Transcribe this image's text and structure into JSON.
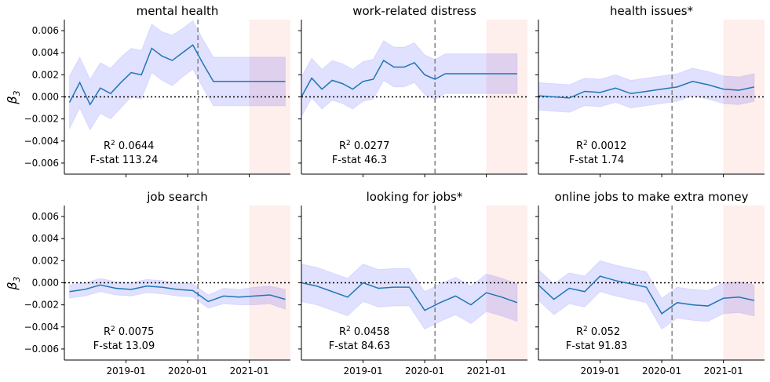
{
  "figure": {
    "ylabel_main": "β",
    "ylabel_sub": "3"
  },
  "colors": {
    "line": "#1f77b4",
    "band": "#0000ff",
    "shade": "#fde0dc",
    "vline": "#808080",
    "hline": "#000000"
  },
  "chart_data": [
    {
      "type": "line",
      "title": "mental health",
      "xlim": [
        "2018-01",
        "2021-09"
      ],
      "ylim": [
        -0.007,
        0.007
      ],
      "x_ticks": [
        "2019-01",
        "2020-01",
        "2021-01"
      ],
      "y_ticks": [
        "0.006",
        "0.004",
        "0.002",
        "0.000",
        "−0.002",
        "−0.004",
        "−0.006"
      ],
      "vline_x": "2020-03",
      "hline_y": 0.0,
      "shade_x": [
        "2021-01",
        "2021-09"
      ],
      "stats": {
        "r2_label": "R",
        "r2_sup": "2",
        "r2": "0.0644",
        "f_label": "F-stat",
        "f": "113.24"
      },
      "series": [
        {
          "x": [
            "2018-02",
            "2018-04",
            "2018-06",
            "2018-08",
            "2018-10",
            "2018-12",
            "2019-02",
            "2019-04",
            "2019-06",
            "2019-08",
            "2019-10",
            "2019-12",
            "2020-02",
            "2020-04",
            "2020-06",
            "2020-08",
            "2020-10",
            "2020-12",
            "2021-02",
            "2021-04",
            "2021-06",
            "2021-08"
          ],
          "y": [
            -0.0005,
            0.0013,
            -0.0007,
            0.0008,
            0.0003,
            0.0013,
            0.0022,
            0.002,
            0.0044,
            0.0037,
            0.0033,
            0.004,
            0.0047,
            0.003,
            0.0014,
            0.0014,
            0.0014,
            0.0014,
            0.0014,
            0.0014,
            0.0014,
            0.0014
          ],
          "y_lower": [
            -0.0029,
            -0.001,
            -0.003,
            -0.0015,
            -0.002,
            -0.001,
            0.0,
            -0.0002,
            0.0022,
            0.0015,
            0.001,
            0.0018,
            0.0025,
            0.0008,
            -0.0008,
            -0.0008,
            -0.0008,
            -0.0008,
            -0.0008,
            -0.0008,
            -0.0008,
            -0.0008
          ],
          "y_upper": [
            0.0019,
            0.0036,
            0.0016,
            0.0031,
            0.0026,
            0.0036,
            0.0044,
            0.0042,
            0.0066,
            0.0059,
            0.0056,
            0.0062,
            0.0069,
            0.0052,
            0.0036,
            0.0036,
            0.0036,
            0.0036,
            0.0036,
            0.0036,
            0.0036,
            0.0036
          ]
        }
      ]
    },
    {
      "type": "line",
      "title": "work-related distress",
      "xlim": [
        "2018-01",
        "2021-09"
      ],
      "ylim": [
        -0.007,
        0.007
      ],
      "x_ticks": [
        "2019-01",
        "2020-01",
        "2021-01"
      ],
      "y_ticks": [],
      "vline_x": "2020-03",
      "hline_y": 0.0,
      "shade_x": [
        "2021-01",
        "2021-09"
      ],
      "stats": {
        "r2_label": "R",
        "r2_sup": "2",
        "r2": "0.0277",
        "f_label": "F-stat",
        "f": "46.3"
      },
      "series": [
        {
          "x": [
            "2018-01",
            "2018-03",
            "2018-05",
            "2018-07",
            "2018-09",
            "2018-11",
            "2019-01",
            "2019-03",
            "2019-05",
            "2019-07",
            "2019-09",
            "2019-11",
            "2020-01",
            "2020-03",
            "2020-05",
            "2020-07",
            "2020-09",
            "2020-11",
            "2021-01",
            "2021-03",
            "2021-05",
            "2021-07"
          ],
          "y": [
            0.0,
            0.0017,
            0.0007,
            0.0015,
            0.0012,
            0.0007,
            0.0014,
            0.0016,
            0.0033,
            0.0027,
            0.0027,
            0.0031,
            0.002,
            0.0016,
            0.0021,
            0.0021,
            0.0021,
            0.0021,
            0.0021,
            0.0021,
            0.0021,
            0.0021
          ],
          "y_lower": [
            -0.0018,
            -0.0001,
            -0.0011,
            -0.0003,
            -0.0006,
            -0.0011,
            -0.0004,
            -0.0002,
            0.0015,
            0.0009,
            0.0009,
            0.0013,
            0.0002,
            -0.0002,
            0.0003,
            0.0003,
            0.0003,
            0.0003,
            0.0003,
            0.0003,
            0.0003,
            0.0003
          ],
          "y_upper": [
            0.0018,
            0.0035,
            0.0025,
            0.0033,
            0.003,
            0.0025,
            0.0032,
            0.0034,
            0.0051,
            0.0045,
            0.0045,
            0.0049,
            0.0038,
            0.0034,
            0.0039,
            0.0039,
            0.0039,
            0.0039,
            0.0039,
            0.0039,
            0.0039,
            0.0039
          ]
        }
      ]
    },
    {
      "type": "line",
      "title": "health issues*",
      "xlim": [
        "2018-01",
        "2021-09"
      ],
      "ylim": [
        -0.007,
        0.007
      ],
      "x_ticks": [
        "2019-01",
        "2020-01",
        "2021-01"
      ],
      "y_ticks": [],
      "vline_x": "2020-03",
      "hline_y": 0.0,
      "shade_x": [
        "2021-01",
        "2021-09"
      ],
      "stats": {
        "r2_label": "R",
        "r2_sup": "2",
        "r2": "0.0012",
        "f_label": "F-stat",
        "f": "1.74"
      },
      "series": [
        {
          "x": [
            "2018-01",
            "2018-04",
            "2018-07",
            "2018-10",
            "2019-01",
            "2019-04",
            "2019-07",
            "2019-10",
            "2020-01",
            "2020-04",
            "2020-07",
            "2020-10",
            "2021-01",
            "2021-04",
            "2021-07"
          ],
          "y": [
            0.0001,
            0.0,
            -0.0001,
            0.0005,
            0.0004,
            0.0008,
            0.0003,
            0.0005,
            0.0007,
            0.0009,
            0.0014,
            0.0011,
            0.0007,
            0.0006,
            0.0009
          ],
          "y_lower": [
            -0.0012,
            -0.0013,
            -0.0014,
            -0.0008,
            -0.0009,
            -0.0005,
            -0.001,
            -0.0008,
            -0.0006,
            -0.0004,
            0.0001,
            -0.0002,
            -0.0006,
            -0.0007,
            -0.0004
          ],
          "y_upper": [
            0.0013,
            0.0012,
            0.0011,
            0.0017,
            0.0016,
            0.002,
            0.0015,
            0.0017,
            0.0019,
            0.0021,
            0.0026,
            0.0023,
            0.0019,
            0.0018,
            0.0021
          ]
        }
      ]
    },
    {
      "type": "line",
      "title": "job search",
      "xlim": [
        "2018-01",
        "2021-09"
      ],
      "ylim": [
        -0.007,
        0.007
      ],
      "x_ticks": [
        "2019-01",
        "2020-01",
        "2021-01"
      ],
      "y_ticks": [
        "0.006",
        "0.004",
        "0.002",
        "0.000",
        "−0.002",
        "−0.004",
        "−0.006"
      ],
      "vline_x": "2020-03",
      "hline_y": 0.0,
      "shade_x": [
        "2021-01",
        "2021-09"
      ],
      "stats": {
        "r2_label": "R",
        "r2_sup": "2",
        "r2": "0.0075",
        "f_label": "F-stat",
        "f": "13.09"
      },
      "series": [
        {
          "x": [
            "2018-02",
            "2018-05",
            "2018-08",
            "2018-11",
            "2019-02",
            "2019-05",
            "2019-08",
            "2019-11",
            "2020-02",
            "2020-05",
            "2020-08",
            "2020-11",
            "2021-02",
            "2021-05",
            "2021-08"
          ],
          "y": [
            -0.0008,
            -0.0006,
            -0.0002,
            -0.0005,
            -0.0006,
            -0.0003,
            -0.0004,
            -0.0006,
            -0.0007,
            -0.0017,
            -0.0012,
            -0.0013,
            -0.0012,
            -0.0011,
            -0.0015
          ],
          "y_lower": [
            -0.0014,
            -0.0012,
            -0.0008,
            -0.0011,
            -0.0012,
            -0.0009,
            -0.001,
            -0.0012,
            -0.0013,
            -0.0023,
            -0.0019,
            -0.002,
            -0.002,
            -0.0019,
            -0.0024
          ],
          "y_upper": [
            -0.0002,
            0.0,
            0.0004,
            0.0001,
            0.0,
            0.0003,
            0.0002,
            0.0,
            -0.0001,
            -0.0011,
            -0.0005,
            -0.0006,
            -0.0004,
            -0.0003,
            -0.0006
          ]
        }
      ]
    },
    {
      "type": "line",
      "title": "looking for jobs*",
      "xlim": [
        "2018-01",
        "2021-09"
      ],
      "ylim": [
        -0.007,
        0.007
      ],
      "x_ticks": [
        "2019-01",
        "2020-01",
        "2021-01"
      ],
      "y_ticks": [],
      "vline_x": "2020-03",
      "hline_y": 0.0,
      "shade_x": [
        "2021-01",
        "2021-09"
      ],
      "stats": {
        "r2_label": "R",
        "r2_sup": "2",
        "r2": "0.0458",
        "f_label": "F-stat",
        "f": "84.63"
      },
      "series": [
        {
          "x": [
            "2018-01",
            "2018-04",
            "2018-07",
            "2018-10",
            "2019-01",
            "2019-04",
            "2019-07",
            "2019-10",
            "2020-01",
            "2020-04",
            "2020-07",
            "2020-10",
            "2021-01",
            "2021-04",
            "2021-07"
          ],
          "y": [
            0.0,
            -0.0003,
            -0.0008,
            -0.0013,
            0.0,
            -0.0005,
            -0.0004,
            -0.0004,
            -0.0025,
            -0.0018,
            -0.0012,
            -0.002,
            -0.0009,
            -0.0013,
            -0.0018
          ],
          "y_lower": [
            -0.0017,
            -0.002,
            -0.0025,
            -0.003,
            -0.0017,
            -0.0022,
            -0.0021,
            -0.0021,
            -0.0042,
            -0.0035,
            -0.0029,
            -0.0037,
            -0.0026,
            -0.003,
            -0.0035
          ],
          "y_upper": [
            0.0017,
            0.0014,
            0.0009,
            0.0004,
            0.0017,
            0.0012,
            0.0013,
            0.0013,
            -0.0008,
            -0.0001,
            0.0005,
            -0.0003,
            0.0008,
            0.0004,
            -0.0001
          ]
        }
      ]
    },
    {
      "type": "line",
      "title": "online jobs to make extra money",
      "xlim": [
        "2018-01",
        "2021-09"
      ],
      "ylim": [
        -0.007,
        0.007
      ],
      "x_ticks": [
        "2019-01",
        "2020-01",
        "2021-01"
      ],
      "y_ticks": [],
      "vline_x": "2020-03",
      "hline_y": 0.0,
      "shade_x": [
        "2021-01",
        "2021-09"
      ],
      "stats": {
        "r2_label": "R",
        "r2_sup": "2",
        "r2": "0.052",
        "f_label": "F-stat",
        "f": "91.83"
      },
      "series": [
        {
          "x": [
            "2018-01",
            "2018-04",
            "2018-07",
            "2018-10",
            "2019-01",
            "2019-04",
            "2019-07",
            "2019-10",
            "2020-01",
            "2020-04",
            "2020-07",
            "2020-10",
            "2021-01",
            "2021-04",
            "2021-07"
          ],
          "y": [
            -0.0002,
            -0.0015,
            -0.0005,
            -0.0008,
            0.0006,
            0.0002,
            -0.0001,
            -0.0004,
            -0.0028,
            -0.0018,
            -0.002,
            -0.0021,
            -0.0014,
            -0.0013,
            -0.0016
          ],
          "y_lower": [
            -0.0016,
            -0.0029,
            -0.0019,
            -0.0022,
            -0.0008,
            -0.0012,
            -0.0015,
            -0.0018,
            -0.0042,
            -0.0032,
            -0.0034,
            -0.0035,
            -0.0028,
            -0.0027,
            -0.003
          ],
          "y_upper": [
            0.0012,
            -0.0001,
            0.0009,
            0.0006,
            0.002,
            0.0016,
            0.0013,
            0.001,
            -0.0014,
            -0.0004,
            -0.0006,
            -0.0007,
            0.0,
            0.0001,
            -0.0002
          ]
        }
      ]
    }
  ]
}
